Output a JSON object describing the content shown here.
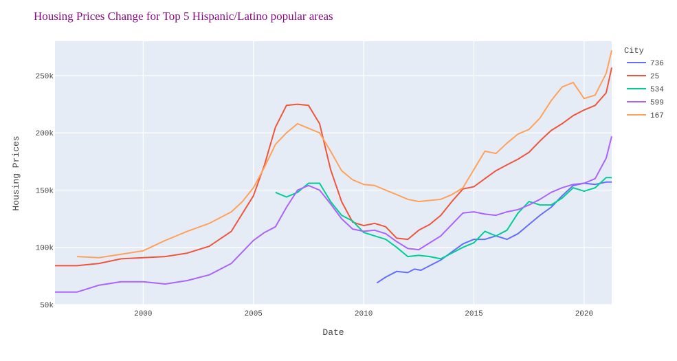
{
  "title": "Housing Prices Change for Top 5 Hispanic/Latino popular areas",
  "title_color": "#8b0a85",
  "plot_bg": "#e5ecf6",
  "chart_data": {
    "type": "line",
    "title": "Housing Prices Change for Top 5 Hispanic/Latino popular areas",
    "xlabel": "Date",
    "ylabel": "Housing Prices",
    "xlim": [
      1996.0,
      2021.25
    ],
    "ylim": [
      50000,
      280000
    ],
    "x_ticks": [
      2000,
      2005,
      2010,
      2015,
      2020
    ],
    "x_tick_labels": [
      "2000",
      "2005",
      "2010",
      "2015",
      "2020"
    ],
    "y_ticks": [
      50000,
      100000,
      150000,
      200000,
      250000
    ],
    "y_tick_labels": [
      "50k",
      "100k",
      "150k",
      "200k",
      "250k"
    ],
    "grid": true,
    "legend": {
      "title": "City",
      "position": "right"
    },
    "series": [
      {
        "name": "736",
        "color": "#636efa",
        "x": [
          2010.6,
          2011.0,
          2011.5,
          2012.0,
          2012.3,
          2012.6,
          2013.0,
          2013.5,
          2014.0,
          2014.5,
          2015.0,
          2015.5,
          2016.0,
          2016.5,
          2017.0,
          2017.5,
          2018.0,
          2018.5,
          2019.0,
          2019.5,
          2020.0,
          2020.5,
          2021.0,
          2021.25
        ],
        "y": [
          69000,
          74000,
          79000,
          78000,
          81000,
          80000,
          84000,
          89000,
          96000,
          103000,
          107000,
          107000,
          110000,
          107000,
          112000,
          120000,
          128000,
          135000,
          145000,
          154000,
          156000,
          155000,
          157000,
          157000
        ]
      },
      {
        "name": "25",
        "color": "#ef553b",
        "x": [
          1996.0,
          1997.0,
          1998.0,
          1999.0,
          2000.0,
          2001.0,
          2002.0,
          2003.0,
          2004.0,
          2005.0,
          2005.5,
          2006.0,
          2006.5,
          2007.0,
          2007.5,
          2008.0,
          2008.5,
          2009.0,
          2009.5,
          2010.0,
          2010.5,
          2011.0,
          2011.5,
          2012.0,
          2012.5,
          2013.0,
          2013.5,
          2014.0,
          2014.5,
          2015.0,
          2015.5,
          2016.0,
          2016.5,
          2017.0,
          2017.5,
          2018.0,
          2018.5,
          2019.0,
          2019.5,
          2020.0,
          2020.5,
          2021.0,
          2021.25
        ],
        "y": [
          84000,
          84000,
          86000,
          90000,
          91000,
          92000,
          95000,
          101000,
          114000,
          145000,
          172000,
          205000,
          224000,
          225000,
          224000,
          208000,
          168000,
          140000,
          122000,
          119000,
          121000,
          118000,
          108000,
          107000,
          115000,
          120000,
          128000,
          140000,
          151000,
          153000,
          160000,
          167000,
          172000,
          177000,
          183000,
          193000,
          202000,
          208000,
          215000,
          220000,
          224000,
          235000,
          257000
        ]
      },
      {
        "name": "534",
        "color": "#00cc96",
        "x": [
          2006.0,
          2006.5,
          2007.0,
          2007.5,
          2008.0,
          2008.5,
          2009.0,
          2009.5,
          2010.0,
          2010.5,
          2011.0,
          2011.5,
          2012.0,
          2012.5,
          2013.0,
          2013.5,
          2014.0,
          2014.5,
          2015.0,
          2015.5,
          2016.0,
          2016.5,
          2017.0,
          2017.5,
          2018.0,
          2018.5,
          2019.0,
          2019.5,
          2020.0,
          2020.5,
          2021.0,
          2021.25
        ],
        "y": [
          148000,
          144000,
          148000,
          156000,
          156000,
          140000,
          128000,
          123000,
          113000,
          110000,
          107000,
          100000,
          92000,
          93000,
          92000,
          90000,
          95000,
          100000,
          104000,
          114000,
          110000,
          115000,
          130000,
          140000,
          137000,
          137000,
          143000,
          152000,
          149000,
          152000,
          161000,
          161000
        ]
      },
      {
        "name": "599",
        "color": "#ab63fa",
        "x": [
          1996.0,
          1997.0,
          1998.0,
          1999.0,
          2000.0,
          2001.0,
          2002.0,
          2003.0,
          2004.0,
          2005.0,
          2005.5,
          2006.0,
          2006.5,
          2007.0,
          2007.5,
          2008.0,
          2008.5,
          2009.0,
          2009.5,
          2010.0,
          2010.5,
          2011.0,
          2011.5,
          2012.0,
          2012.5,
          2013.0,
          2013.5,
          2014.0,
          2014.5,
          2015.0,
          2015.5,
          2016.0,
          2016.5,
          2017.0,
          2017.5,
          2018.0,
          2018.5,
          2019.0,
          2019.5,
          2020.0,
          2020.5,
          2021.0,
          2021.25
        ],
        "y": [
          61000,
          61000,
          67000,
          70000,
          70000,
          68000,
          71000,
          76000,
          86000,
          106000,
          113000,
          118000,
          135000,
          150000,
          154000,
          150000,
          138000,
          125000,
          116000,
          114000,
          115000,
          112000,
          105000,
          99000,
          98000,
          104000,
          110000,
          120000,
          130000,
          131000,
          129000,
          128000,
          131000,
          133000,
          137000,
          142000,
          148000,
          152000,
          155000,
          156000,
          160000,
          178000,
          197000
        ]
      },
      {
        "name": "167",
        "color": "#ffa15a",
        "x": [
          1997.0,
          1998.0,
          1999.0,
          2000.0,
          2001.0,
          2002.0,
          2003.0,
          2004.0,
          2004.5,
          2005.0,
          2005.5,
          2006.0,
          2006.5,
          2007.0,
          2007.5,
          2008.0,
          2008.5,
          2009.0,
          2009.5,
          2010.0,
          2010.5,
          2011.0,
          2011.5,
          2012.0,
          2012.5,
          2013.0,
          2013.5,
          2014.0,
          2014.5,
          2015.0,
          2015.5,
          2016.0,
          2016.5,
          2017.0,
          2017.5,
          2018.0,
          2018.5,
          2019.0,
          2019.5,
          2020.0,
          2020.5,
          2021.0,
          2021.25
        ],
        "y": [
          92000,
          91000,
          94000,
          97000,
          106000,
          114000,
          121000,
          131000,
          140000,
          152000,
          170000,
          190000,
          200000,
          208000,
          204000,
          200000,
          184000,
          167000,
          159000,
          155000,
          154000,
          150000,
          146000,
          142000,
          140000,
          141000,
          142000,
          146000,
          152000,
          168000,
          184000,
          182000,
          191000,
          199000,
          203000,
          213000,
          228000,
          240000,
          244000,
          230000,
          233000,
          252000,
          272000
        ]
      }
    ]
  }
}
